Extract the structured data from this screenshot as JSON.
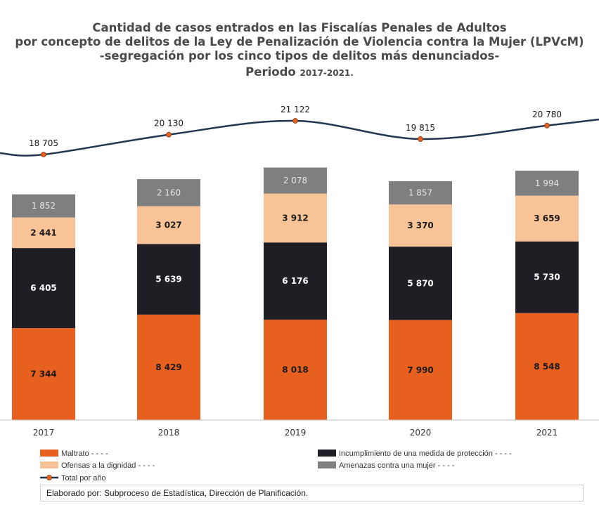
{
  "title": {
    "line1": "Cantidad de casos entrados en las Fiscalías Penales de Adultos",
    "line2": "por concepto de delitos de  la Ley de Penalización de Violencia contra la Mujer (LPVcM)",
    "line3": "-segregación por los cinco tipos de delitos más denunciados-",
    "period_label": "Periodo",
    "period_years": "2017-2021."
  },
  "footer": {
    "credit": "Elaborado por: Subproceso de Estadística, Dirección de Planificación."
  },
  "colors": {
    "maltrato": "#e8601f",
    "incumplimiento": "#1f1e24",
    "ofensas": "#f8c396",
    "amenazas": "#7f7f7f",
    "total_line": "#22374f",
    "total_marker": "#e8601f"
  },
  "chart_data": {
    "type": "bar",
    "stacked": true,
    "categories": [
      "2017",
      "2018",
      "2019",
      "2020",
      "2021"
    ],
    "series": [
      {
        "name": "Maltrato - - - -",
        "key": "maltrato",
        "values": [
          7344,
          8429,
          8018,
          7990,
          8548
        ],
        "labels": [
          "7 344",
          "8 429",
          "8 018",
          "7 990",
          "8 548"
        ]
      },
      {
        "name": "Incumplimiento de una medida de protección - - - -",
        "key": "incumplimiento",
        "values": [
          6405,
          5639,
          6176,
          5870,
          5730
        ],
        "labels": [
          "6 405",
          "5 639",
          "6 176",
          "5 870",
          "5 730"
        ]
      },
      {
        "name": "Ofensas a la dignidad - - - -",
        "key": "ofensas",
        "values": [
          2441,
          3027,
          3912,
          3370,
          3659
        ],
        "labels": [
          "2 441",
          "3 027",
          "3 912",
          "3 370",
          "3 659"
        ]
      },
      {
        "name": "Amenazas contra una mujer - - - -",
        "key": "amenazas",
        "values": [
          1852,
          2160,
          2078,
          1857,
          1994
        ],
        "labels": [
          "1 852",
          "2 160",
          "2 078",
          "1 857",
          "1 994"
        ]
      }
    ],
    "line_series": {
      "name": "Total por año",
      "key": "total",
      "values": [
        18705,
        20130,
        21122,
        19815,
        20780
      ],
      "labels": [
        "18 705",
        "20 130",
        "21 122",
        "19 815",
        "20 780"
      ]
    },
    "ylim": [
      0,
      25000
    ],
    "grid": false,
    "legend_position": "bottom"
  }
}
